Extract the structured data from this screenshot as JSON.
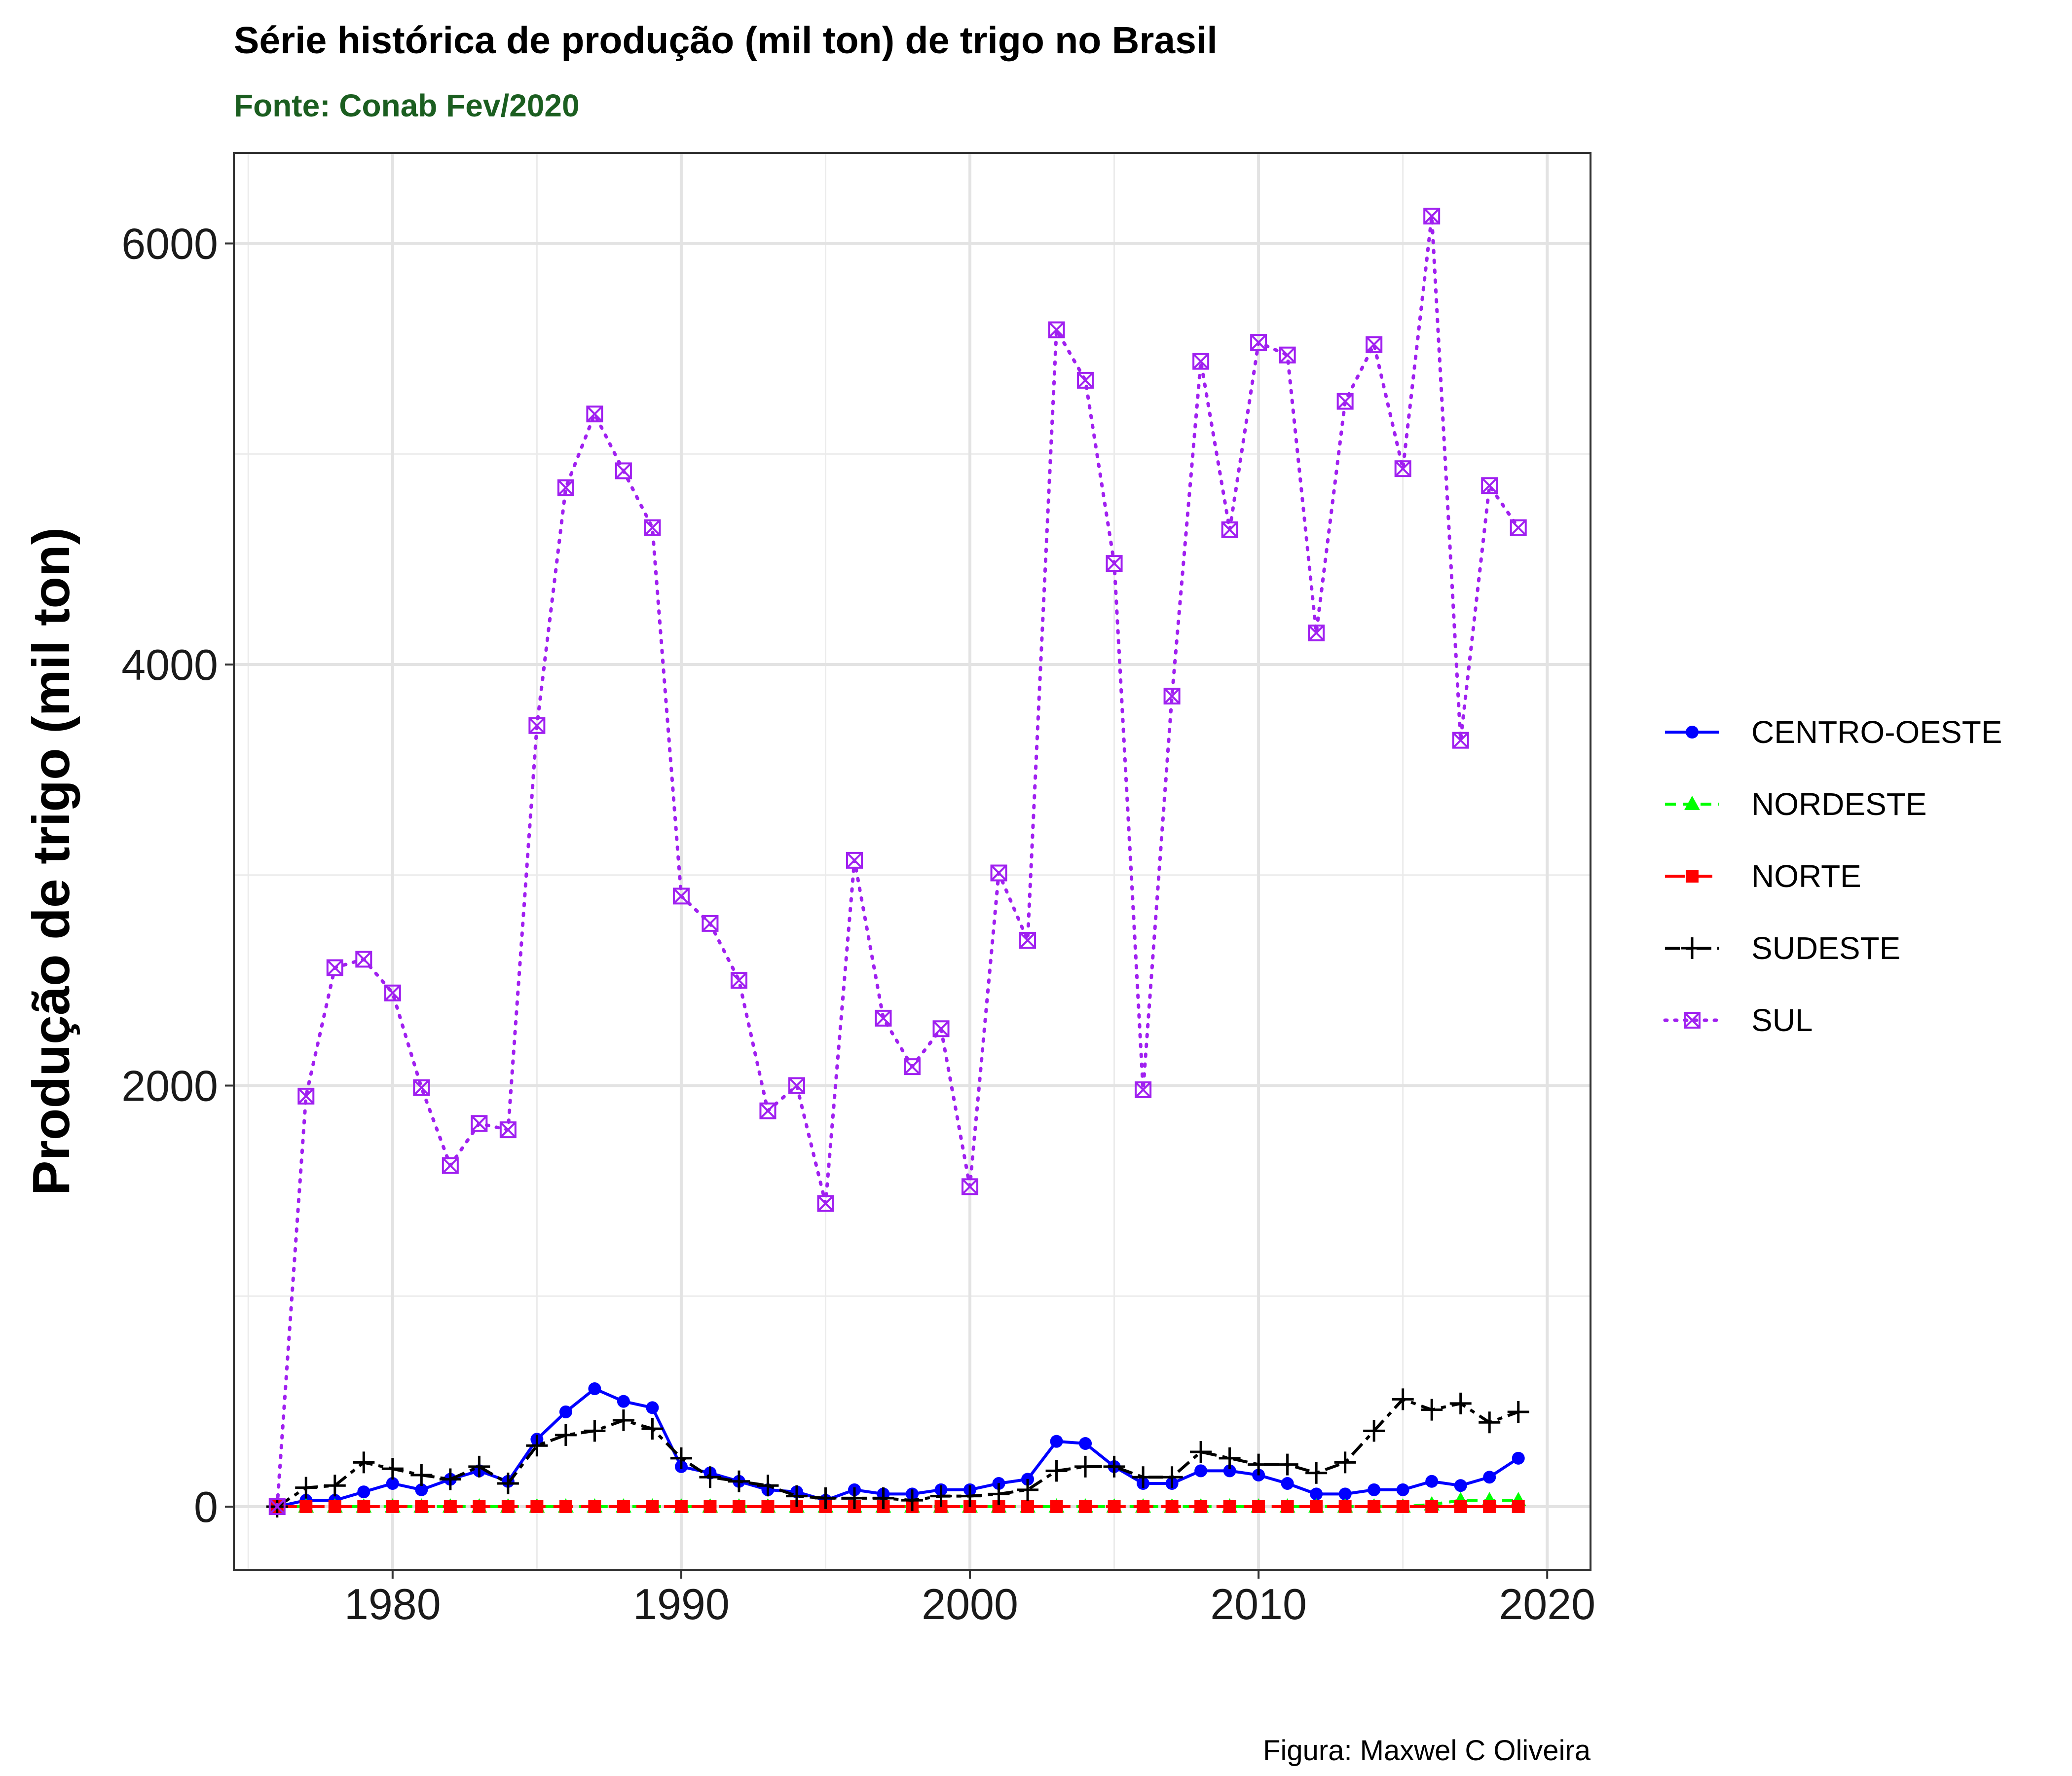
{
  "chart_data": {
    "type": "line",
    "title": "Série histórica de produção (mil ton) de trigo no Brasil",
    "subtitle": "Fonte: Conab Fev/2020",
    "caption": "Figura: Maxwel C Oliveira",
    "xlabel": "",
    "ylabel": "Produção de trigo (mil ton)",
    "xlim": [
      1974.5,
      2021.5
    ],
    "ylim": [
      -300,
      6430
    ],
    "x_ticks": [
      1980,
      1990,
      2000,
      2010,
      2020
    ],
    "y_ticks": [
      0,
      2000,
      4000,
      6000
    ],
    "grid": true,
    "legend_position": "right",
    "x": [
      1976,
      1977,
      1978,
      1979,
      1980,
      1981,
      1982,
      1983,
      1984,
      1985,
      1986,
      1987,
      1988,
      1989,
      1990,
      1991,
      1992,
      1993,
      1994,
      1995,
      1996,
      1997,
      1998,
      1999,
      2000,
      2001,
      2002,
      2003,
      2004,
      2005,
      2006,
      2007,
      2008,
      2009,
      2010,
      2011,
      2012,
      2013,
      2014,
      2015,
      2016,
      2017,
      2018,
      2019
    ],
    "series": [
      {
        "name": "CENTRO-OESTE",
        "color": "#0000ff",
        "dash": "solid",
        "marker": "circle",
        "values": [
          0,
          30,
          30,
          70,
          110,
          80,
          130,
          170,
          120,
          320,
          450,
          560,
          500,
          470,
          190,
          160,
          120,
          80,
          70,
          30,
          80,
          60,
          60,
          80,
          80,
          110,
          130,
          310,
          300,
          190,
          110,
          110,
          170,
          170,
          150,
          110,
          60,
          60,
          80,
          80,
          120,
          100,
          140,
          230
        ]
      },
      {
        "name": "NORDESTE",
        "color": "#00ff00",
        "dash": "dashed",
        "marker": "triangle",
        "values": [
          0,
          0,
          0,
          0,
          0,
          0,
          0,
          0,
          0,
          0,
          0,
          0,
          0,
          0,
          0,
          0,
          0,
          0,
          0,
          0,
          0,
          0,
          0,
          0,
          0,
          0,
          0,
          0,
          0,
          0,
          0,
          0,
          0,
          0,
          0,
          0,
          0,
          0,
          0,
          0,
          10,
          30,
          30,
          30
        ]
      },
      {
        "name": "NORTE",
        "color": "#ff0000",
        "dash": "longdash",
        "marker": "square",
        "values": [
          0,
          0,
          0,
          0,
          0,
          0,
          0,
          0,
          0,
          0,
          0,
          0,
          0,
          0,
          0,
          0,
          0,
          0,
          0,
          0,
          0,
          0,
          0,
          0,
          0,
          0,
          0,
          0,
          0,
          0,
          0,
          0,
          0,
          0,
          0,
          0,
          0,
          0,
          0,
          0,
          0,
          0,
          0,
          0
        ]
      },
      {
        "name": "SUDESTE",
        "color": "#000000",
        "dash": "twodash",
        "marker": "plus",
        "values": [
          0,
          90,
          100,
          210,
          180,
          150,
          130,
          190,
          110,
          290,
          340,
          360,
          410,
          370,
          230,
          140,
          120,
          100,
          50,
          40,
          40,
          40,
          30,
          50,
          50,
          60,
          80,
          170,
          190,
          190,
          140,
          140,
          260,
          230,
          200,
          200,
          160,
          210,
          360,
          510,
          460,
          490,
          400,
          450
        ]
      },
      {
        "name": "SUL",
        "color": "#a020f0",
        "dash": "dotted",
        "marker": "square-x",
        "values": [
          0,
          1950,
          2560,
          2600,
          2440,
          1990,
          1620,
          1820,
          1790,
          3710,
          4840,
          5190,
          4920,
          4650,
          2900,
          2770,
          2500,
          1880,
          2000,
          1440,
          3070,
          2320,
          2090,
          2270,
          1520,
          3010,
          2690,
          5590,
          5350,
          4480,
          1980,
          3850,
          5440,
          4640,
          5530,
          5470,
          4150,
          5250,
          5520,
          4930,
          6130,
          3640,
          4850,
          4650
        ]
      }
    ]
  }
}
